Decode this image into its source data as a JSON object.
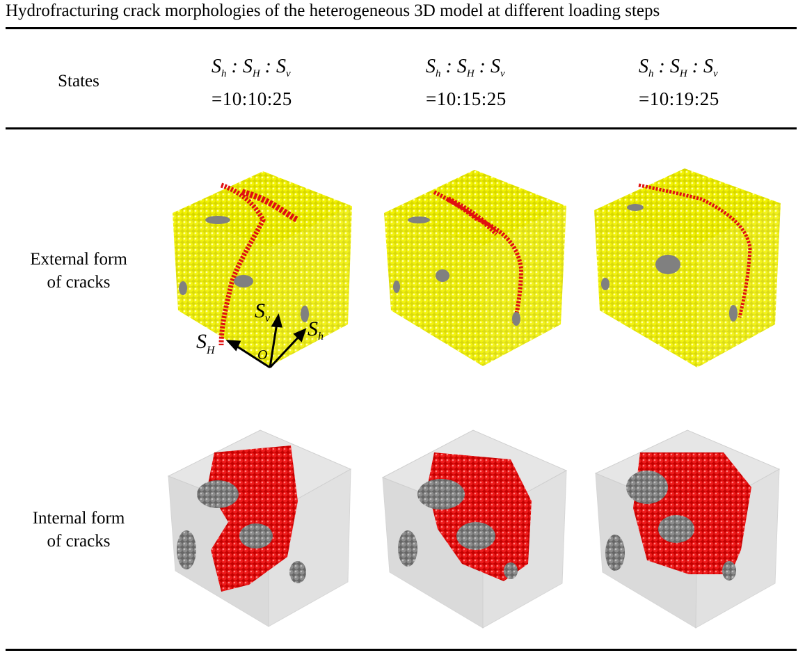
{
  "caption": "Hydrofracturing crack morphologies of the heterogeneous 3D model at different loading steps",
  "header": {
    "row_label": "States",
    "states": [
      {
        "ratio_symbols": "Sh : SH : Sv",
        "ratio_values": "=10:10:25"
      },
      {
        "ratio_symbols": "Sh : SH : Sv",
        "ratio_values": "=10:15:25"
      },
      {
        "ratio_symbols": "Sh : SH : Sv",
        "ratio_values": "=10:19:25"
      }
    ]
  },
  "rows": [
    {
      "label_line1": "External form",
      "label_line2": "of cracks"
    },
    {
      "label_line1": "Internal form",
      "label_line2": "of cracks"
    }
  ],
  "axes": {
    "sv": "S",
    "sv_sub": "v",
    "sh": "S",
    "sh_sub": "h",
    "sH": "S",
    "sH_sub": "H",
    "origin": "O"
  },
  "colors": {
    "particles": "#e6e600",
    "crack": "#e01010",
    "inclusion": "#808080",
    "frame": "#d9d9d9"
  }
}
